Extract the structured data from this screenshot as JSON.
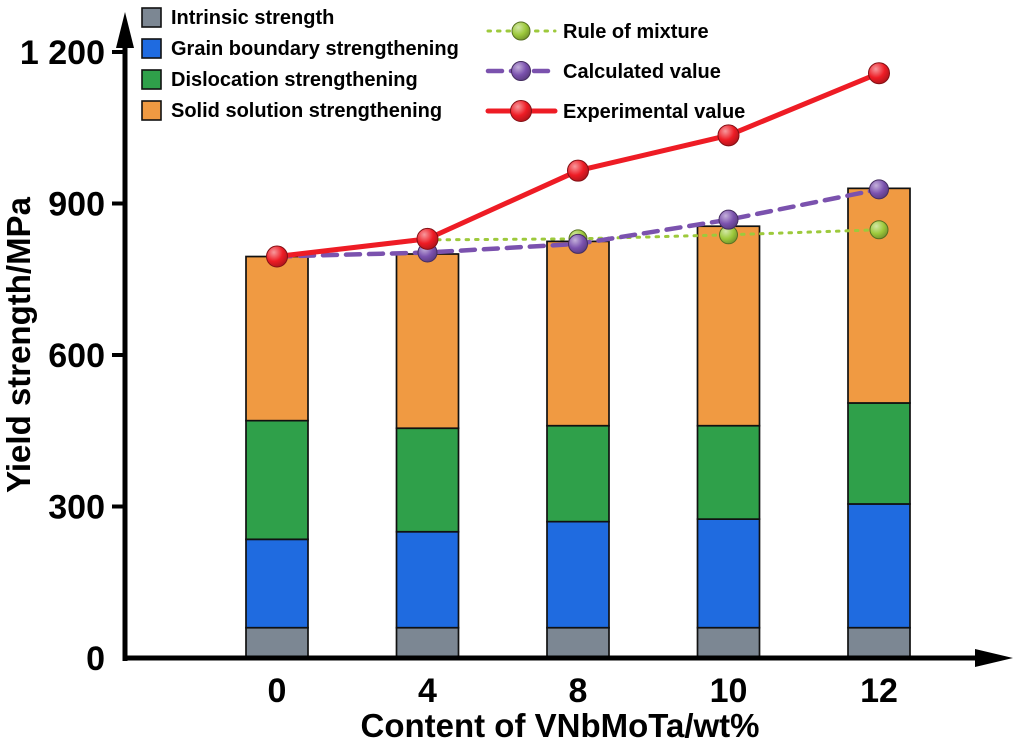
{
  "chart_data": {
    "type": "bar",
    "stacked": true,
    "title": "",
    "xlabel": "Content of VNbMoTa/wt%",
    "ylabel": "Yield strength/MPa",
    "categories": [
      "0",
      "4",
      "8",
      "10",
      "12"
    ],
    "ylim": [
      0,
      1260
    ],
    "yticks": [
      0,
      300,
      600,
      900,
      1200
    ],
    "ytick_labels": [
      "0",
      "300",
      "600",
      "900",
      "1 200"
    ],
    "bar_series": [
      {
        "name": "Intrinsic strength",
        "color": "#7c8793",
        "values": [
          60,
          60,
          60,
          60,
          60
        ]
      },
      {
        "name": "Grain boundary strengthening",
        "color": "#1f6be0",
        "values": [
          175,
          190,
          210,
          215,
          245
        ]
      },
      {
        "name": "Dislocation strengthening",
        "color": "#2fa04a",
        "values": [
          235,
          205,
          190,
          185,
          200
        ]
      },
      {
        "name": "Solid solution strengthening",
        "color": "#f09a42",
        "values": [
          325,
          345,
          365,
          395,
          425
        ]
      }
    ],
    "bar_totals": [
      795,
      800,
      825,
      855,
      930
    ],
    "line_series": [
      {
        "name": "Rule of mixture",
        "color": "#9dc93c",
        "style": "dotted",
        "values": [
          795,
          828,
          830,
          838,
          848
        ]
      },
      {
        "name": "Calculated value",
        "color": "#7b52ae",
        "style": "dashed",
        "values": [
          795,
          803,
          820,
          868,
          928
        ]
      },
      {
        "name": "Experimental value",
        "color": "#ee1c25",
        "style": "solid",
        "values": [
          795,
          830,
          965,
          1035,
          1158
        ]
      }
    ],
    "legend_position": "top-left-inside",
    "grid": false
  }
}
